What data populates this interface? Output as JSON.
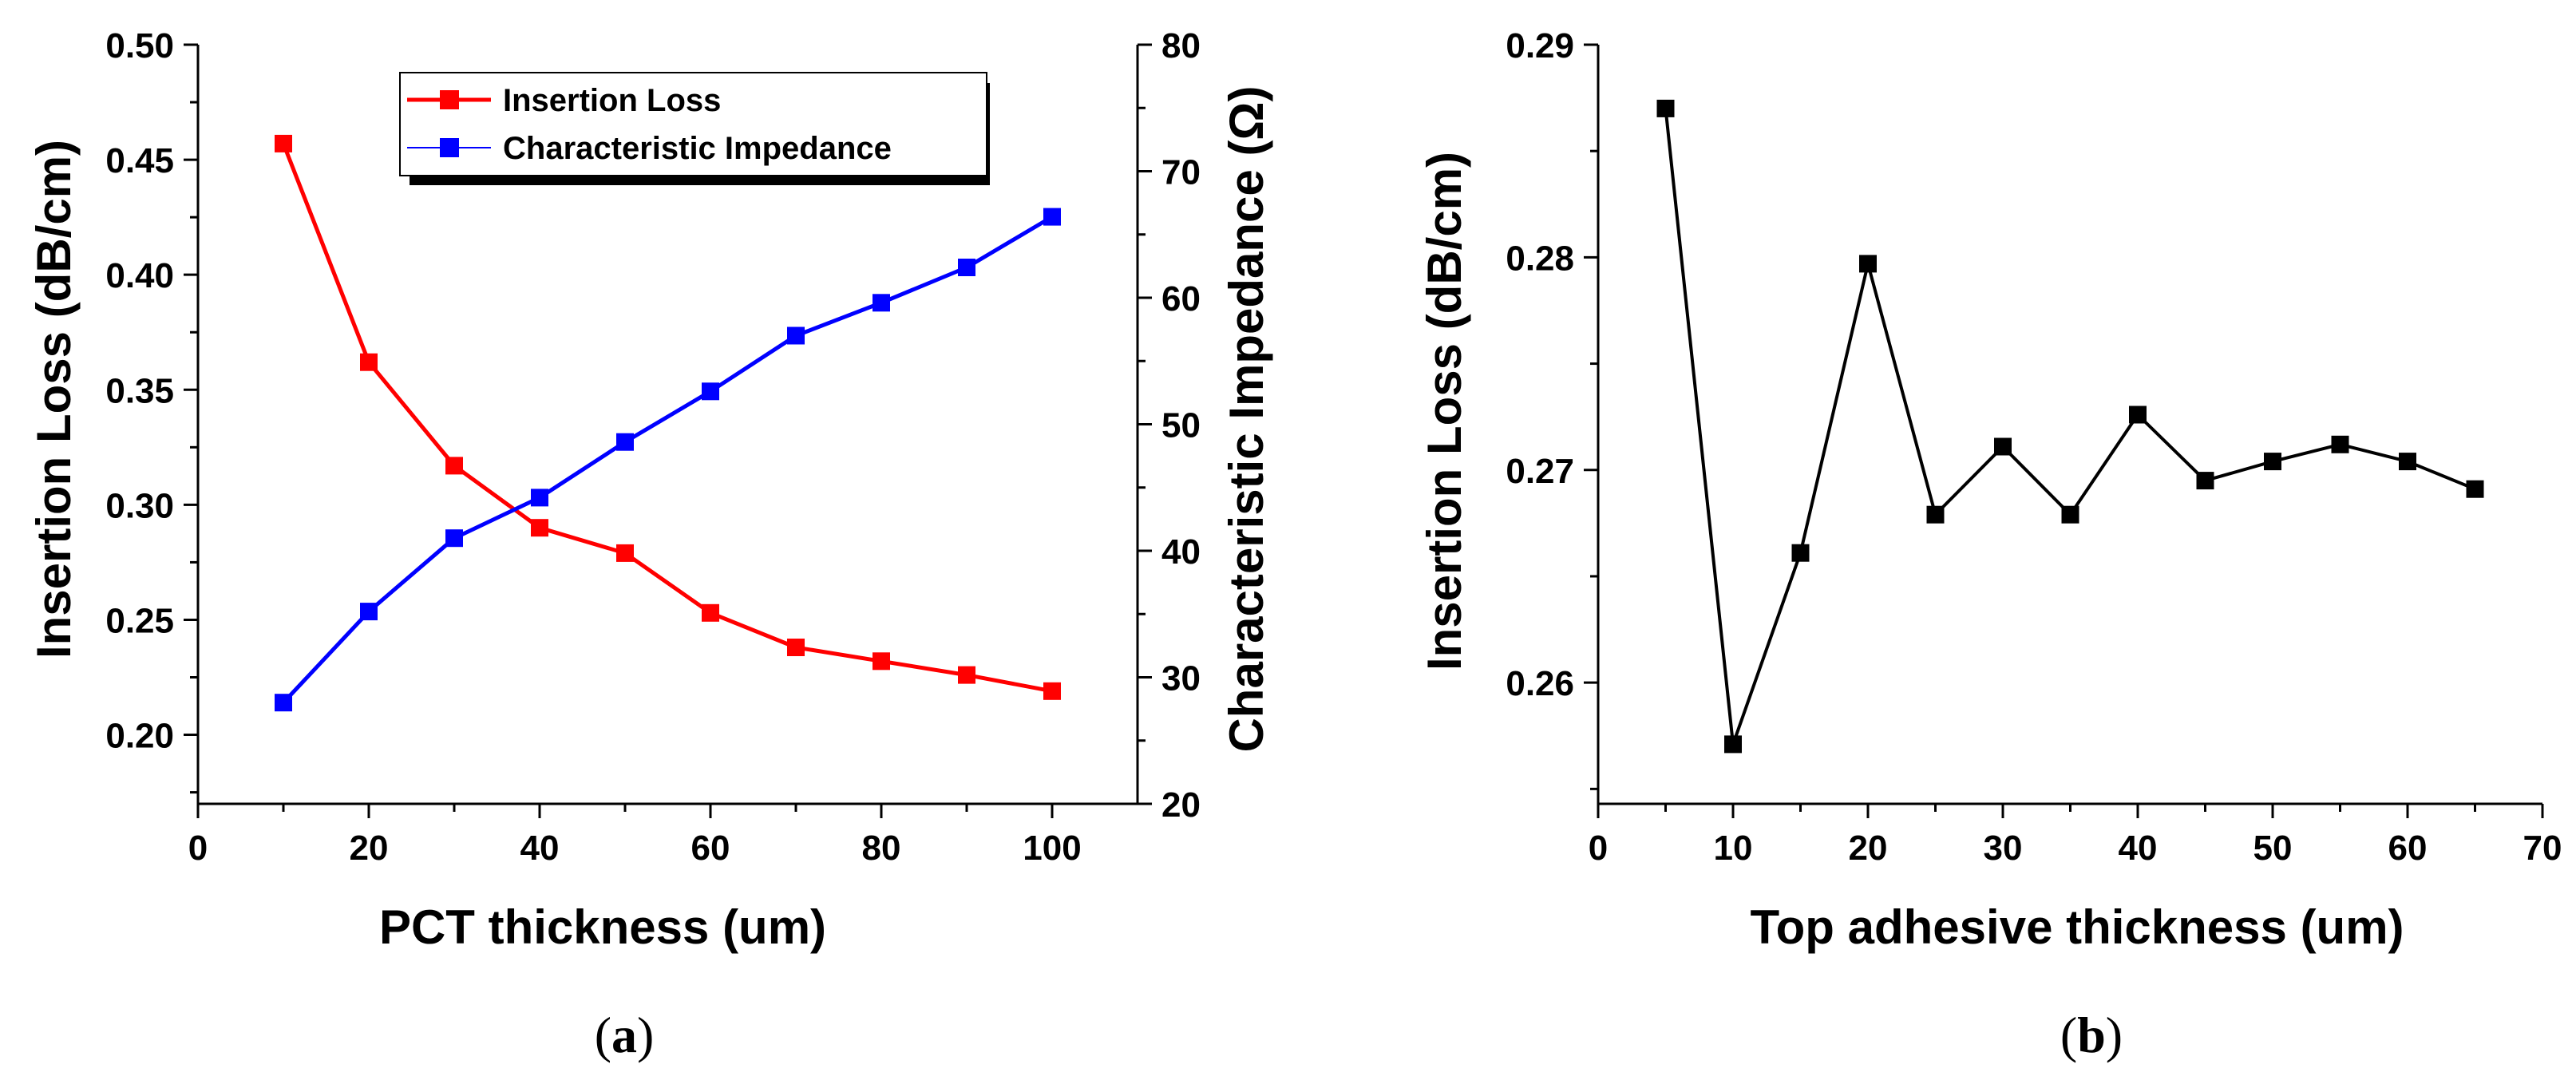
{
  "chart_data": [
    {
      "type": "line",
      "panel": "(a)",
      "panel_letter": "a",
      "xlabel": "PCT thickness (um)",
      "ylabel": "Insertion Loss (dB/cm)",
      "y2label": "Characteristic Impedance (Ω)",
      "xlim": [
        0,
        110
      ],
      "ylim": [
        0.17,
        0.5
      ],
      "y2lim": [
        20,
        80
      ],
      "xticks": [
        0,
        20,
        40,
        60,
        80,
        100
      ],
      "yticks": [
        0.2,
        0.25,
        0.3,
        0.35,
        0.4,
        0.45,
        0.5
      ],
      "y2ticks": [
        20,
        30,
        40,
        50,
        60,
        70,
        80
      ],
      "x": [
        10,
        20,
        30,
        40,
        50,
        60,
        70,
        80,
        90,
        100
      ],
      "series": [
        {
          "name": "Insertion Loss",
          "axis": "left",
          "color": "#ff0000",
          "values": [
            0.457,
            0.362,
            0.317,
            0.29,
            0.279,
            0.253,
            0.238,
            0.232,
            0.226,
            0.219
          ]
        },
        {
          "name": "Characteristic Impedance",
          "axis": "right",
          "color": "#0000ff",
          "values": [
            28.0,
            35.2,
            41.0,
            44.2,
            48.6,
            52.6,
            57.0,
            59.6,
            62.4,
            66.4
          ]
        }
      ],
      "legend": "top-center"
    },
    {
      "type": "line",
      "panel": "(b)",
      "panel_letter": "b",
      "xlabel": "Top adhesive thickness (um)",
      "ylabel": "Insertion Loss (dB/cm)",
      "xlim": [
        0,
        70
      ],
      "ylim": [
        0.2543,
        0.29
      ],
      "xticks": [
        0,
        10,
        20,
        30,
        40,
        50,
        60,
        70
      ],
      "yticks": [
        0.26,
        0.27,
        0.28,
        0.29
      ],
      "x": [
        5,
        10,
        15,
        20,
        25,
        30,
        35,
        40,
        45,
        50,
        55,
        60,
        65
      ],
      "series": [
        {
          "name": "Insertion Loss",
          "axis": "left",
          "color": "#000000",
          "values": [
            0.287,
            0.2571,
            0.2661,
            0.2797,
            0.2679,
            0.2711,
            0.2679,
            0.2726,
            0.2695,
            0.2704,
            0.2712,
            0.2704,
            0.2691
          ]
        }
      ]
    }
  ]
}
